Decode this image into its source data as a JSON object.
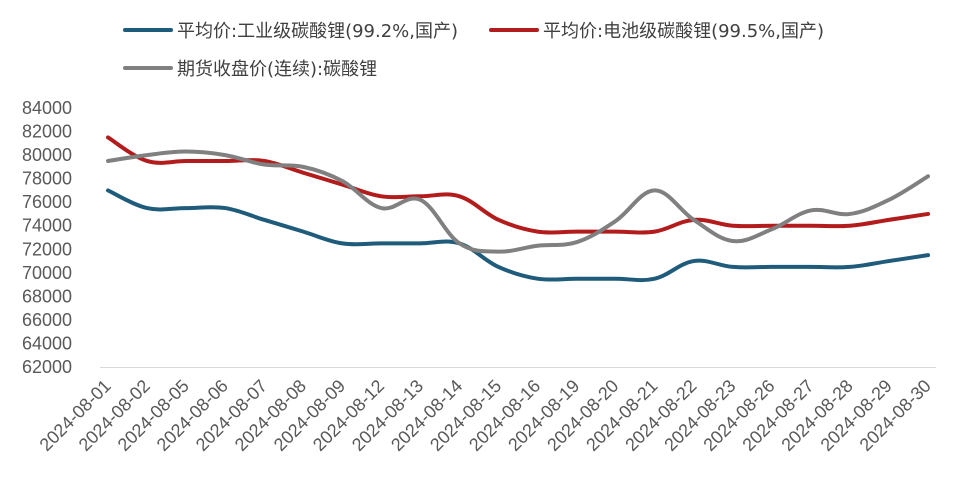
{
  "chart_data": {
    "type": "line",
    "title": "",
    "xlabel": "",
    "ylabel": "",
    "ylim": [
      62000,
      84000
    ],
    "ytick_step": 2000,
    "grid": false,
    "legend_position": "top",
    "categories": [
      "2024-08-01",
      "2024-08-02",
      "2024-08-05",
      "2024-08-06",
      "2024-08-07",
      "2024-08-08",
      "2024-08-09",
      "2024-08-12",
      "2024-08-13",
      "2024-08-14",
      "2024-08-15",
      "2024-08-16",
      "2024-08-19",
      "2024-08-20",
      "2024-08-21",
      "2024-08-22",
      "2024-08-23",
      "2024-08-26",
      "2024-08-27",
      "2024-08-28",
      "2024-08-29",
      "2024-08-30"
    ],
    "series": [
      {
        "name": "平均价:工业级碳酸锂(99.2%,国产)",
        "color": "#1f5b7a",
        "values": [
          77000,
          75500,
          75500,
          75500,
          74500,
          73500,
          72500,
          72500,
          72500,
          72500,
          70500,
          69500,
          69500,
          69500,
          69500,
          71000,
          70500,
          70500,
          70500,
          70500,
          71000,
          71500
        ]
      },
      {
        "name": "平均价:电池级碳酸锂(99.5%,国产)",
        "color": "#b21c1c",
        "values": [
          81500,
          79500,
          79500,
          79500,
          79500,
          78500,
          77500,
          76500,
          76500,
          76500,
          74500,
          73500,
          73500,
          73500,
          73500,
          74500,
          74000,
          74000,
          74000,
          74000,
          74500,
          75000
        ]
      },
      {
        "name": "期货收盘价(连续):碳酸锂",
        "color": "#808080",
        "values": [
          79500,
          80000,
          80300,
          80000,
          79200,
          79000,
          77800,
          75500,
          76200,
          72500,
          71800,
          72300,
          72600,
          74400,
          77000,
          74500,
          72700,
          73700,
          75300,
          75000,
          76200,
          78200
        ]
      }
    ]
  }
}
